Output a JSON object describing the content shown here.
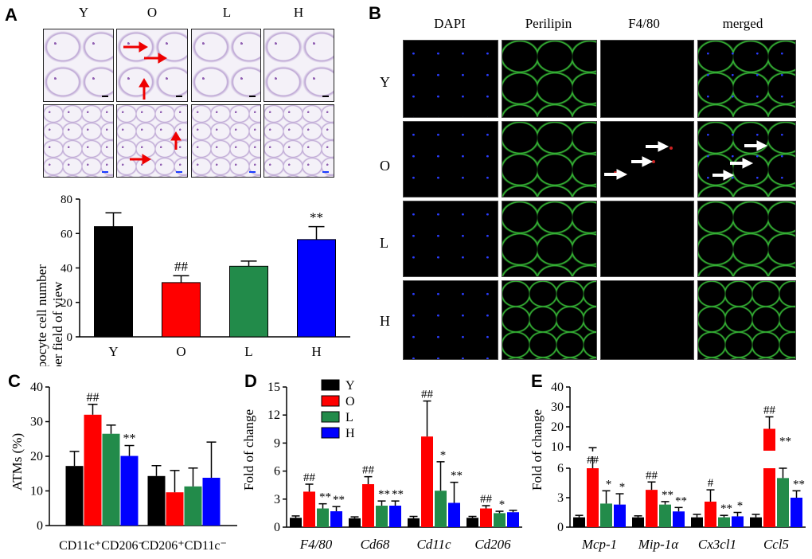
{
  "panels": {
    "A": "A",
    "B": "B",
    "C": "C",
    "D": "D",
    "E": "E"
  },
  "panel_a": {
    "groups": [
      "Y",
      "O",
      "L",
      "H"
    ]
  },
  "panel_b": {
    "columns": [
      "DAPI",
      "Perilipin",
      "F4/80",
      "merged"
    ],
    "rows": [
      "Y",
      "O",
      "L",
      "H"
    ]
  },
  "chart_data": [
    {
      "id": "A",
      "type": "bar",
      "categories": [
        "Y",
        "O",
        "L",
        "H"
      ],
      "values": [
        64,
        31.5,
        41,
        56.5
      ],
      "errors": [
        8,
        4,
        3,
        7.5
      ],
      "colors": [
        "#000000",
        "#ff0000",
        "#228b4a",
        "#0000ff"
      ],
      "annotations": [
        "",
        "##",
        "",
        "**"
      ],
      "ylabel_line1": "Adipocyte cell number",
      "ylabel_line2": "per field of view",
      "ylim": [
        0,
        80
      ],
      "yticks": [
        "0",
        "20",
        "40",
        "60",
        "80"
      ]
    },
    {
      "id": "C",
      "type": "bar",
      "categories": [
        "CD11c⁺CD206⁻",
        "CD206⁺CD11c⁻"
      ],
      "series": [
        {
          "name": "Y",
          "color": "#000000",
          "values": [
            17.2,
            14.3
          ],
          "errors": [
            4.2,
            3
          ]
        },
        {
          "name": "O",
          "color": "#ff0000",
          "values": [
            32,
            9.6
          ],
          "errors": [
            3,
            6.3
          ]
        },
        {
          "name": "L",
          "color": "#228b4a",
          "values": [
            26.5,
            11.3
          ],
          "errors": [
            2.5,
            5.3
          ]
        },
        {
          "name": "H",
          "color": "#0000ff",
          "values": [
            20.1,
            13.8
          ],
          "errors": [
            3,
            10.3
          ]
        }
      ],
      "annotations": [
        [
          "",
          "##",
          "",
          "**"
        ],
        [
          "",
          "",
          "",
          ""
        ]
      ],
      "ylabel": "ATMs (%)",
      "ylim": [
        0,
        40
      ],
      "yticks": [
        "0",
        "10",
        "20",
        "30",
        "40"
      ]
    },
    {
      "id": "D",
      "type": "bar",
      "categories": [
        "F4/80",
        "Cd68",
        "Cd11c",
        "Cd206"
      ],
      "series": [
        {
          "name": "Y",
          "color": "#000000",
          "values": [
            1,
            0.95,
            0.95,
            1
          ],
          "errors": [
            0.2,
            0.15,
            0.2,
            0.15
          ]
        },
        {
          "name": "O",
          "color": "#ff0000",
          "values": [
            3.8,
            4.6,
            9.7,
            2
          ],
          "errors": [
            0.8,
            0.8,
            3.8,
            0.3
          ]
        },
        {
          "name": "L",
          "color": "#228b4a",
          "values": [
            2,
            2.3,
            3.9,
            1.5
          ],
          "errors": [
            0.5,
            0.5,
            3.1,
            0.2
          ]
        },
        {
          "name": "H",
          "color": "#0000ff",
          "values": [
            1.7,
            2.3,
            2.6,
            1.6
          ],
          "errors": [
            0.5,
            0.5,
            2.2,
            0.2
          ]
        }
      ],
      "annotations": [
        [
          "",
          "##",
          "**",
          "**"
        ],
        [
          "",
          "##",
          "**",
          "**"
        ],
        [
          "",
          "##",
          "*",
          "**"
        ],
        [
          "",
          "##",
          "*",
          ""
        ]
      ],
      "ylabel": "Fold of change",
      "ylim": [
        0,
        15
      ],
      "yticks": [
        "0",
        "3",
        "6",
        "9",
        "12",
        "15"
      ],
      "legend": [
        "Y",
        "O",
        "L",
        "H"
      ]
    },
    {
      "id": "E",
      "type": "bar",
      "categories": [
        "Mcp-1",
        "Mip-1α",
        "Cx3cl1",
        "Ccl5"
      ],
      "series": [
        {
          "name": "Y",
          "color": "#000000",
          "values": [
            1,
            1,
            1,
            1
          ],
          "errors": [
            0.2,
            0.15,
            0.3,
            0.3
          ]
        },
        {
          "name": "O",
          "color": "#ff0000",
          "values": [
            7.5,
            3.8,
            2.6,
            19
          ],
          "errors": [
            2,
            0.8,
            1.2,
            6
          ]
        },
        {
          "name": "L",
          "color": "#228b4a",
          "values": [
            2.4,
            2.3,
            1,
            5
          ],
          "errors": [
            1.3,
            0.3,
            0.2,
            1.3
          ]
        },
        {
          "name": "H",
          "color": "#0000ff",
          "values": [
            2.3,
            1.6,
            1.1,
            3
          ],
          "errors": [
            1.1,
            0.4,
            0.4,
            0.7
          ]
        }
      ],
      "annotations": [
        [
          "",
          "##",
          "*",
          "*"
        ],
        [
          "",
          "##",
          "**",
          "**"
        ],
        [
          "",
          "#",
          "**",
          "*"
        ],
        [
          "",
          "##",
          "**",
          "**"
        ]
      ],
      "ylabel": "Fold of change",
      "ylim": [
        0,
        40
      ],
      "broken_axis": [
        6,
        8
      ],
      "yticks_low": [
        "0",
        "3",
        "6"
      ],
      "yticks_high": [
        "10",
        "20",
        "30",
        "40"
      ]
    }
  ]
}
